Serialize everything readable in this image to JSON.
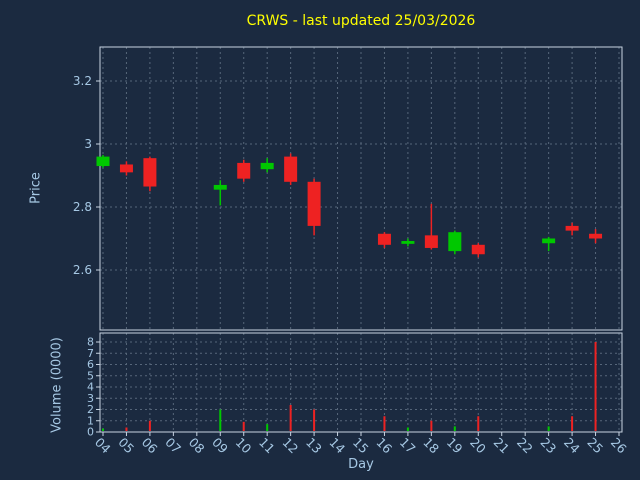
{
  "title": "CRWS - last updated 25/03/2026",
  "colors": {
    "background": "#1b2a40",
    "title": "#ffff00",
    "axis_text": "#a6c8e4",
    "frame": "#c8d4e2",
    "grid": "#9fb0c0",
    "up": "#00c800",
    "down": "#ee2222"
  },
  "price_axis": {
    "label": "Price",
    "ticks": [
      2.6,
      2.8,
      3.0,
      3.2
    ],
    "tick_labels": [
      "2.6",
      "2.8",
      "3",
      "3.2"
    ],
    "min": 2.41,
    "max": 3.31
  },
  "volume_axis": {
    "label": "Volume (0000)",
    "ticks": [
      0,
      1,
      2,
      3,
      4,
      5,
      6,
      7,
      8
    ],
    "min": 0,
    "max": 8.8
  },
  "x_axis": {
    "label": "Day",
    "first_day": 4,
    "last_day": 26,
    "ticks": [
      "04",
      "05",
      "06",
      "07",
      "08",
      "09",
      "10",
      "11",
      "12",
      "13",
      "14",
      "15",
      "16",
      "17",
      "18",
      "19",
      "20",
      "21",
      "22",
      "23",
      "24",
      "25",
      "26"
    ]
  },
  "chart_data": {
    "type": "candlestick+volume",
    "title": "CRWS - last updated 25/03/2026",
    "xlabel": "Day",
    "ylabel": "Price",
    "y2label": "Volume (0000)",
    "grid": true,
    "candles": [
      {
        "day": 4,
        "open": 2.93,
        "high": 2.965,
        "low": 2.925,
        "close": 2.96,
        "volume": 0.3
      },
      {
        "day": 5,
        "open": 2.935,
        "high": 2.945,
        "low": 2.9,
        "close": 2.91,
        "volume": 0.4
      },
      {
        "day": 6,
        "open": 2.955,
        "high": 2.96,
        "low": 2.85,
        "close": 2.865,
        "volume": 1.0
      },
      {
        "day": 9,
        "open": 2.855,
        "high": 2.885,
        "low": 2.805,
        "close": 2.87,
        "volume": 2.0
      },
      {
        "day": 10,
        "open": 2.94,
        "high": 2.95,
        "low": 2.88,
        "close": 2.89,
        "volume": 0.9
      },
      {
        "day": 11,
        "open": 2.92,
        "high": 2.955,
        "low": 2.91,
        "close": 2.94,
        "volume": 0.7
      },
      {
        "day": 12,
        "open": 2.96,
        "high": 2.97,
        "low": 2.87,
        "close": 2.88,
        "volume": 2.4
      },
      {
        "day": 13,
        "open": 2.88,
        "high": 2.89,
        "low": 2.71,
        "close": 2.74,
        "volume": 2.0
      },
      {
        "day": 16,
        "open": 2.715,
        "high": 2.72,
        "low": 2.67,
        "close": 2.68,
        "volume": 1.4
      },
      {
        "day": 17,
        "open": 2.683,
        "high": 2.7,
        "low": 2.675,
        "close": 2.692,
        "volume": 0.4
      },
      {
        "day": 18,
        "open": 2.71,
        "high": 2.81,
        "low": 2.665,
        "close": 2.67,
        "volume": 1.0
      },
      {
        "day": 19,
        "open": 2.66,
        "high": 2.725,
        "low": 2.65,
        "close": 2.72,
        "volume": 0.5
      },
      {
        "day": 20,
        "open": 2.68,
        "high": 2.685,
        "low": 2.64,
        "close": 2.65,
        "volume": 1.4
      },
      {
        "day": 23,
        "open": 2.685,
        "high": 2.705,
        "low": 2.66,
        "close": 2.7,
        "volume": 0.5
      },
      {
        "day": 24,
        "open": 2.74,
        "high": 2.75,
        "low": 2.71,
        "close": 2.725,
        "volume": 1.4
      },
      {
        "day": 25,
        "open": 2.715,
        "high": 2.73,
        "low": 2.685,
        "close": 2.7,
        "volume": 8.0
      }
    ]
  }
}
